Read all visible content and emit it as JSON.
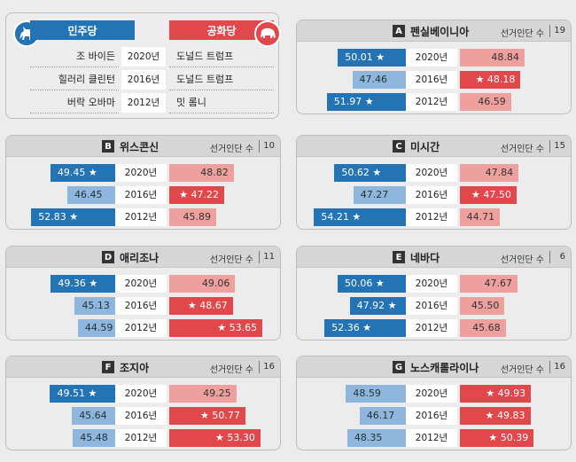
{
  "legend": {
    "dem_label": "민주당",
    "rep_label": "공화당",
    "rows": [
      {
        "dem": "조 바이든",
        "year": "2020년",
        "rep": "도널드 트럼프"
      },
      {
        "dem": "힐러리 클린턴",
        "year": "2016년",
        "rep": "도널드 트럼프"
      },
      {
        "dem": "버락 오바마",
        "year": "2012년",
        "rep": "밋 롬니"
      }
    ]
  },
  "ev_label": "선거인단 수",
  "colors": {
    "dem_win": "#2474b5",
    "dem_lose": "#8fb7de",
    "rep_win": "#e2474b",
    "rep_lose": "#eea09e"
  },
  "chart_data": [
    {
      "type": "bar",
      "letter": "A",
      "state": "펜실베이니아",
      "electoral_votes": "19",
      "rows": [
        {
          "year": "2020년",
          "dem": 50.01,
          "rep": 48.84,
          "winner": "dem",
          "dem_label": "50.01 ★",
          "rep_label": "48.84"
        },
        {
          "year": "2016년",
          "dem": 47.46,
          "rep": 48.18,
          "winner": "rep",
          "dem_label": "47.46",
          "rep_label": "★ 48.18"
        },
        {
          "year": "2012년",
          "dem": 51.97,
          "rep": 46.59,
          "winner": "dem",
          "dem_label": "51.97 ★",
          "rep_label": "46.59"
        }
      ]
    },
    {
      "type": "bar",
      "letter": "B",
      "state": "위스콘신",
      "electoral_votes": "10",
      "rows": [
        {
          "year": "2020년",
          "dem": 49.45,
          "rep": 48.82,
          "winner": "dem",
          "dem_label": "49.45 ★",
          "rep_label": "48.82"
        },
        {
          "year": "2016년",
          "dem": 46.45,
          "rep": 47.22,
          "winner": "rep",
          "dem_label": "46.45",
          "rep_label": "★ 47.22"
        },
        {
          "year": "2012년",
          "dem": 52.83,
          "rep": 45.89,
          "winner": "dem",
          "dem_label": "52.83 ★",
          "rep_label": "45.89"
        }
      ]
    },
    {
      "type": "bar",
      "letter": "C",
      "state": "미시간",
      "electoral_votes": "15",
      "rows": [
        {
          "year": "2020년",
          "dem": 50.62,
          "rep": 47.84,
          "winner": "dem",
          "dem_label": "50.62 ★",
          "rep_label": "47.84"
        },
        {
          "year": "2016년",
          "dem": 47.27,
          "rep": 47.5,
          "winner": "rep",
          "dem_label": "47.27",
          "rep_label": "★ 47.50"
        },
        {
          "year": "2012년",
          "dem": 54.21,
          "rep": 44.71,
          "winner": "dem",
          "dem_label": "54.21 ★",
          "rep_label": "44.71"
        }
      ]
    },
    {
      "type": "bar",
      "letter": "D",
      "state": "애리조나",
      "electoral_votes": "11",
      "rows": [
        {
          "year": "2020년",
          "dem": 49.36,
          "rep": 49.06,
          "winner": "dem",
          "dem_label": "49.36 ★",
          "rep_label": "49.06"
        },
        {
          "year": "2016년",
          "dem": 45.13,
          "rep": 48.67,
          "winner": "rep",
          "dem_label": "45.13",
          "rep_label": "★ 48.67"
        },
        {
          "year": "2012년",
          "dem": 44.59,
          "rep": 53.65,
          "winner": "rep",
          "dem_label": "44.59",
          "rep_label": "★ 53.65"
        }
      ]
    },
    {
      "type": "bar",
      "letter": "E",
      "state": "네바다",
      "electoral_votes": "6",
      "rows": [
        {
          "year": "2020년",
          "dem": 50.06,
          "rep": 47.67,
          "winner": "dem",
          "dem_label": "50.06 ★",
          "rep_label": "47.67"
        },
        {
          "year": "2016년",
          "dem": 47.92,
          "rep": 45.5,
          "winner": "dem",
          "dem_label": "47.92 ★",
          "rep_label": "45.50"
        },
        {
          "year": "2012년",
          "dem": 52.36,
          "rep": 45.68,
          "winner": "dem",
          "dem_label": "52.36 ★",
          "rep_label": "45.68"
        }
      ]
    },
    {
      "type": "bar",
      "letter": "F",
      "state": "조지아",
      "electoral_votes": "16",
      "rows": [
        {
          "year": "2020년",
          "dem": 49.51,
          "rep": 49.25,
          "winner": "dem",
          "dem_label": "49.51 ★",
          "rep_label": "49.25"
        },
        {
          "year": "2016년",
          "dem": 45.64,
          "rep": 50.77,
          "winner": "rep",
          "dem_label": "45.64",
          "rep_label": "★ 50.77"
        },
        {
          "year": "2012년",
          "dem": 45.48,
          "rep": 53.3,
          "winner": "rep",
          "dem_label": "45.48",
          "rep_label": "★ 53.30"
        }
      ]
    },
    {
      "type": "bar",
      "letter": "G",
      "state": "노스캐롤라이나",
      "electoral_votes": "16",
      "rows": [
        {
          "year": "2020년",
          "dem": 48.59,
          "rep": 49.93,
          "winner": "rep",
          "dem_label": "48.59",
          "rep_label": "★ 49.93"
        },
        {
          "year": "2016년",
          "dem": 46.17,
          "rep": 49.83,
          "winner": "rep",
          "dem_label": "46.17",
          "rep_label": "★ 49.83"
        },
        {
          "year": "2012년",
          "dem": 48.35,
          "rep": 50.39,
          "winner": "rep",
          "dem_label": "48.35",
          "rep_label": "★ 50.39"
        }
      ]
    }
  ]
}
